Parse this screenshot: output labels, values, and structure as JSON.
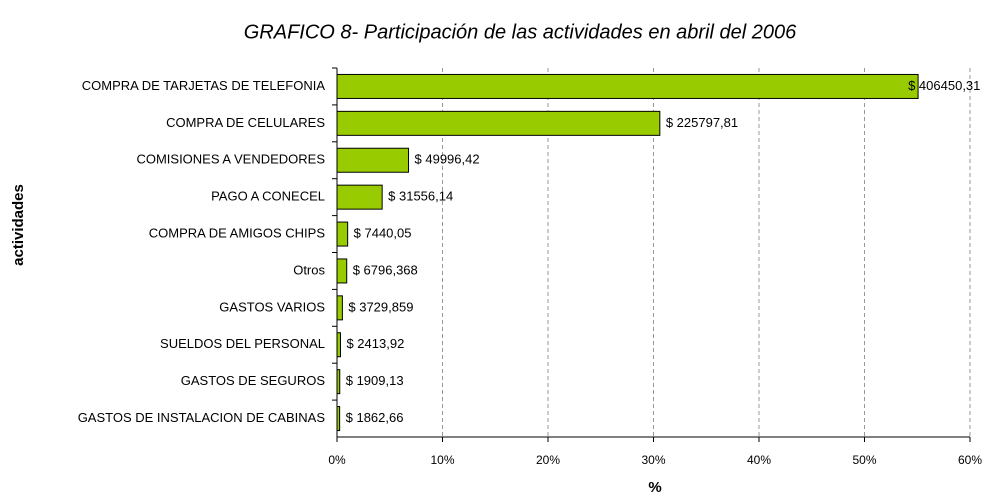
{
  "chart_data": {
    "type": "bar",
    "orientation": "horizontal",
    "title": "GRAFICO 8-  Participación de las actividades en abril del 2006",
    "xlabel": "%",
    "ylabel": "actividades",
    "categories": [
      "COMPRA DE TARJETAS DE TELEFONIA",
      "COMPRA DE CELULARES",
      "COMISIONES A VENDEDORES",
      "PAGO A CONECEL",
      "COMPRA DE AMIGOS CHIPS",
      "Otros",
      "GASTOS VARIOS",
      "SUELDOS DEL PERSONAL",
      "GASTOS DE SEGUROS",
      "GASTOS DE INSTALACION DE CABINAS"
    ],
    "values": [
      55.08,
      30.6,
      6.78,
      4.28,
      1.01,
      0.92,
      0.51,
      0.33,
      0.26,
      0.25
    ],
    "amount_labels": [
      "$ 406450,31",
      "$ 225797,81",
      "$ 49996,42",
      "$ 31556,14",
      "$ 7440,05",
      "$ 6796,368",
      "$ 3729,859",
      "$ 2413,92",
      "$ 1909,13",
      "$ 1862,66"
    ],
    "color": "#99cc00",
    "xlim": [
      0,
      60
    ],
    "xticks": [
      {
        "value": 0,
        "label": "0%"
      },
      {
        "value": 10,
        "label": "10%"
      },
      {
        "value": 20,
        "label": "20%"
      },
      {
        "value": 30,
        "label": "30%"
      },
      {
        "value": 40,
        "label": "40%"
      },
      {
        "value": 50,
        "label": "50%"
      },
      {
        "value": 60,
        "label": "60%"
      }
    ],
    "grid": true
  }
}
